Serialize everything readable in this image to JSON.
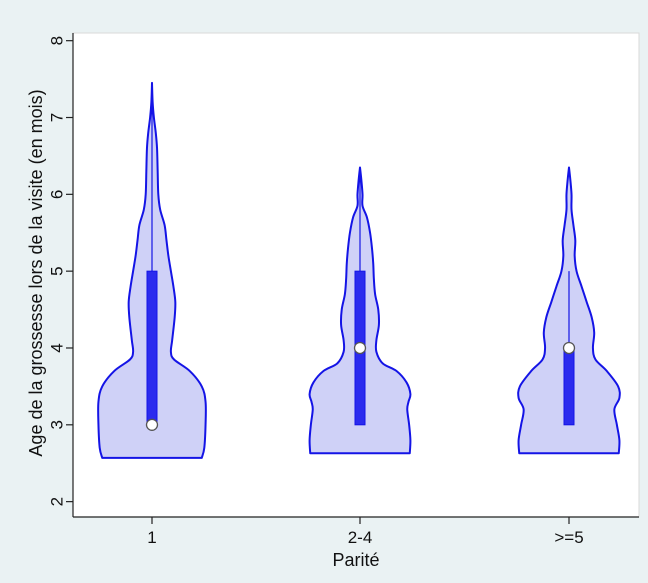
{
  "chart_data": {
    "type": "violin",
    "title": "",
    "xlabel": "Parité",
    "ylabel": "Age de la grossesse lors de la visite (en mois)",
    "ylim": [
      1.8,
      8.1
    ],
    "yticks": [
      2,
      3,
      4,
      5,
      6,
      7,
      8
    ],
    "categories": [
      "1",
      "2-4",
      ">=5"
    ],
    "series": [
      {
        "category": "1",
        "median": 3,
        "q1": 3,
        "q3": 5,
        "whisker_low": 3,
        "whisker_high": 7.45,
        "violin_min": 2.57,
        "violin_max": 7.45,
        "density": [
          [
            2.57,
            0.79
          ],
          [
            2.7,
            0.83
          ],
          [
            3.0,
            0.85
          ],
          [
            3.3,
            0.85
          ],
          [
            3.5,
            0.79
          ],
          [
            3.7,
            0.6
          ],
          [
            3.85,
            0.35
          ],
          [
            3.95,
            0.3
          ],
          [
            4.1,
            0.32
          ],
          [
            4.4,
            0.36
          ],
          [
            4.6,
            0.37
          ],
          [
            4.8,
            0.34
          ],
          [
            5.0,
            0.3
          ],
          [
            5.2,
            0.26
          ],
          [
            5.4,
            0.23
          ],
          [
            5.6,
            0.2
          ],
          [
            5.8,
            0.13
          ],
          [
            6.0,
            0.1
          ],
          [
            6.3,
            0.09
          ],
          [
            6.6,
            0.08
          ],
          [
            6.8,
            0.06
          ],
          [
            7.0,
            0.03
          ],
          [
            7.2,
            0.01
          ],
          [
            7.45,
            0.0
          ]
        ]
      },
      {
        "category": "2-4",
        "median": 4,
        "q1": 3,
        "q3": 5,
        "whisker_low": 3,
        "whisker_high": 6.35,
        "violin_min": 2.63,
        "violin_max": 6.35,
        "density": [
          [
            2.63,
            0.79
          ],
          [
            2.8,
            0.8
          ],
          [
            3.0,
            0.78
          ],
          [
            3.2,
            0.75
          ],
          [
            3.3,
            0.77
          ],
          [
            3.4,
            0.8
          ],
          [
            3.55,
            0.74
          ],
          [
            3.7,
            0.58
          ],
          [
            3.8,
            0.36
          ],
          [
            3.95,
            0.26
          ],
          [
            4.1,
            0.26
          ],
          [
            4.3,
            0.3
          ],
          [
            4.5,
            0.29
          ],
          [
            4.7,
            0.24
          ],
          [
            4.9,
            0.22
          ],
          [
            5.1,
            0.21
          ],
          [
            5.3,
            0.19
          ],
          [
            5.5,
            0.16
          ],
          [
            5.7,
            0.11
          ],
          [
            5.85,
            0.04
          ],
          [
            6.0,
            0.04
          ],
          [
            6.2,
            0.02
          ],
          [
            6.35,
            0.0
          ]
        ]
      },
      {
        "category": ">=5",
        "median": 4,
        "q1": 3,
        "q3": 4,
        "whisker_low": 3,
        "whisker_high": 5,
        "violin_min": 2.63,
        "violin_max": 6.35,
        "density": [
          [
            2.63,
            0.79
          ],
          [
            2.8,
            0.8
          ],
          [
            3.0,
            0.76
          ],
          [
            3.2,
            0.72
          ],
          [
            3.35,
            0.8
          ],
          [
            3.5,
            0.78
          ],
          [
            3.7,
            0.6
          ],
          [
            3.85,
            0.42
          ],
          [
            4.0,
            0.38
          ],
          [
            4.2,
            0.4
          ],
          [
            4.4,
            0.36
          ],
          [
            4.6,
            0.28
          ],
          [
            4.8,
            0.2
          ],
          [
            5.0,
            0.12
          ],
          [
            5.2,
            0.09
          ],
          [
            5.4,
            0.1
          ],
          [
            5.6,
            0.07
          ],
          [
            5.8,
            0.04
          ],
          [
            6.0,
            0.04
          ],
          [
            6.2,
            0.02
          ],
          [
            6.35,
            0.0
          ]
        ]
      }
    ],
    "colors": {
      "violin_fill": "#cfd1f7",
      "violin_stroke": "#1414e6",
      "box_fill": "#2b2bee",
      "median_marker": "#ffffff",
      "plot_bg": "#ffffff",
      "outer_bg": "#eaf2f3",
      "axis": "#222222"
    }
  }
}
